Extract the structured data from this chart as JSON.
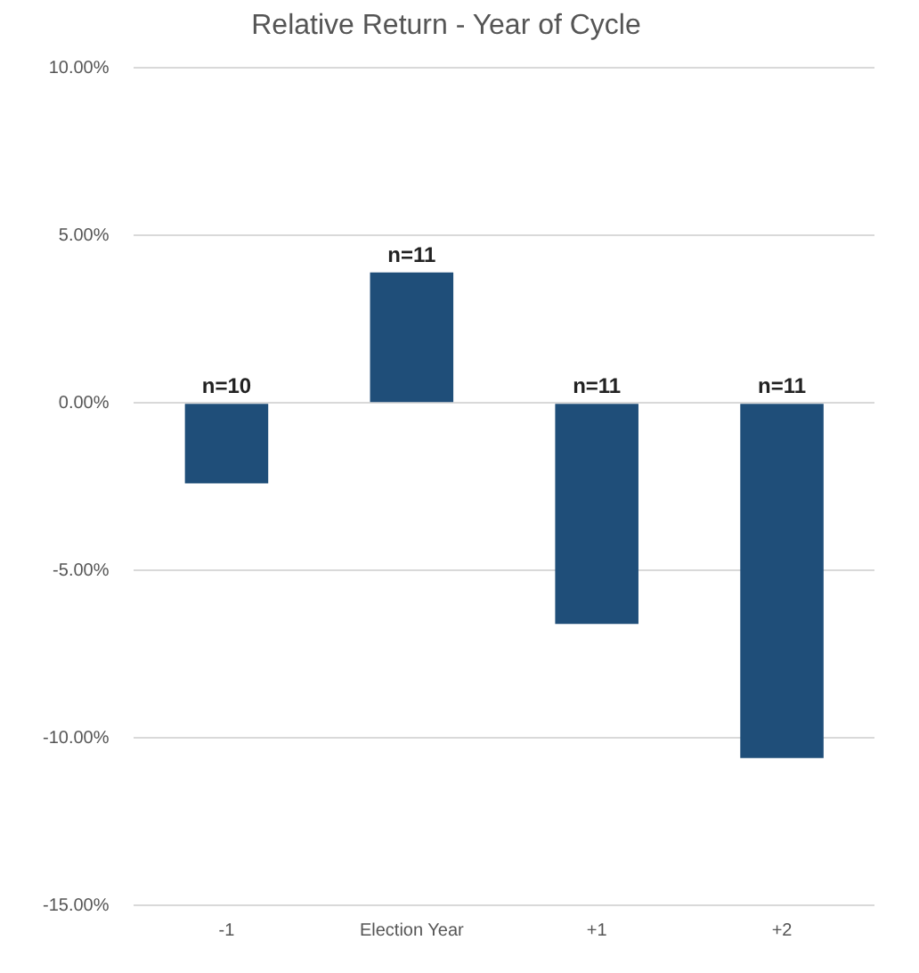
{
  "chart_data": {
    "type": "bar",
    "title": "Relative Return - Year of Cycle",
    "categories": [
      "-1",
      "Election Year",
      "+1",
      "+2"
    ],
    "values": [
      -2.4,
      3.9,
      -6.6,
      -10.6
    ],
    "color": "#1f4e79",
    "ylim": [
      -15,
      10
    ],
    "yticks": [
      {
        "value": -15,
        "label": "-15.00%"
      },
      {
        "value": -10,
        "label": "-10.00%"
      },
      {
        "value": -5,
        "label": "-5.00%"
      },
      {
        "value": 0,
        "label": "0.00%"
      },
      {
        "value": 5,
        "label": "5.00%"
      },
      {
        "value": 10,
        "label": "10.00%"
      }
    ],
    "grid": "y",
    "legend": false,
    "annotations": [
      {
        "text": "n=10",
        "x": "-1",
        "y": 0
      },
      {
        "text": "n=11",
        "x": "Election Year",
        "y": 3.9
      },
      {
        "text": "n=11",
        "x": "+1",
        "y": 0
      },
      {
        "text": "n=11",
        "x": "+2",
        "y": 0
      }
    ]
  }
}
